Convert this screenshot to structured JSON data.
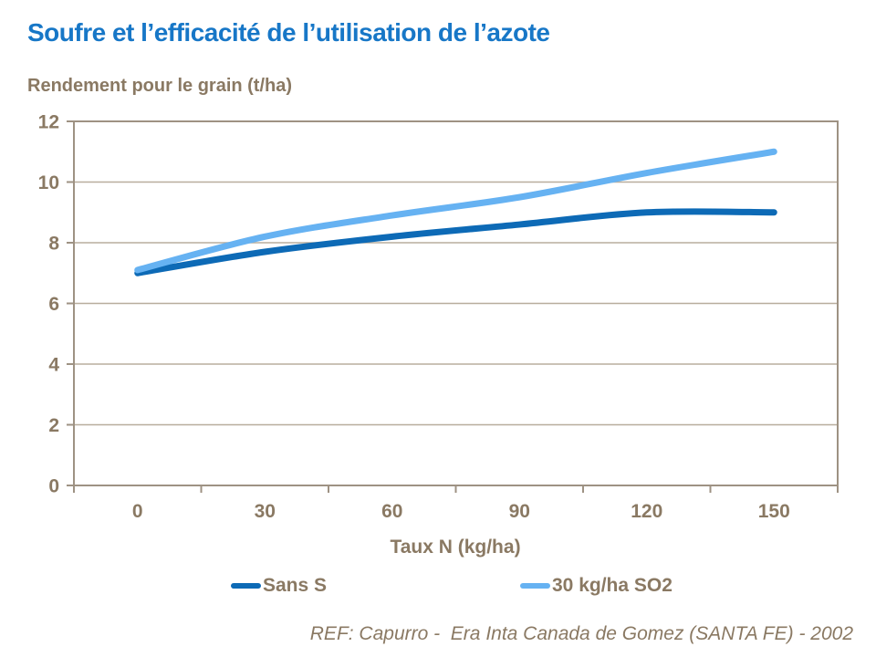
{
  "colors": {
    "title_blue": "#1777c7",
    "label_brown": "#8a7963",
    "plot_border": "#9e9283",
    "gridline": "#b8ad9d",
    "background": "#ffffff"
  },
  "chart_data": {
    "type": "line",
    "title": "Soufre et l’efficacité de l’utilisation de l’azote",
    "subtitle": "Rendement pour le grain (t/ha)",
    "xlabel": "Taux N (kg/ha)",
    "ylabel": "Rendement pour le grain (t/ha)",
    "categories": [
      "0",
      "30",
      "60",
      "90",
      "120",
      "150"
    ],
    "series": [
      {
        "name": "Sans S",
        "color": "#0d6ab6",
        "values": [
          7.0,
          7.7,
          8.2,
          8.6,
          9.0,
          9.0
        ]
      },
      {
        "name": "30 kg/ha SO2",
        "color": "#66b2f2",
        "values": [
          7.1,
          8.2,
          8.9,
          9.5,
          10.3,
          11.0
        ]
      }
    ],
    "ylim": [
      0,
      12
    ],
    "ytick_step": 2,
    "grid": true,
    "legend_position": "bottom",
    "smoothed_lines": true,
    "reference": "REF: Capurro -  Era Inta Canada de Gomez (SANTA FE) - 2002"
  }
}
